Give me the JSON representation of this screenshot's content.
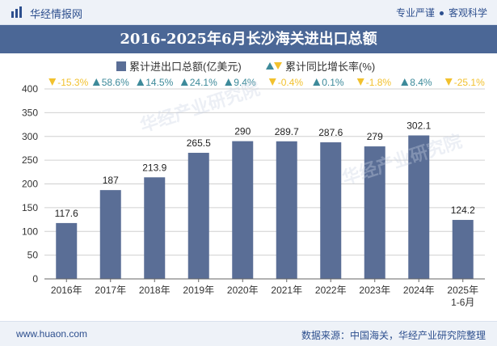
{
  "header": {
    "logo_text": "华经情报网",
    "tagline_left": "专业严谨",
    "tagline_right": "客观科学"
  },
  "colors": {
    "bar": "#5a6e96",
    "up": "#3d8a9a",
    "down": "#f2c12e",
    "title_bg": "#4b6796"
  },
  "watermark": {
    "text": "华经产业研究院",
    "url": "www.huaon.com"
  },
  "chart_data": {
    "type": "bar",
    "title": "2016-2025年6月长沙海关进出口总额",
    "legend": {
      "series1": "累计进出口总额(亿美元)",
      "series2": "累计同比增长率(%)"
    },
    "categories": [
      "2016年",
      "2017年",
      "2018年",
      "2019年",
      "2020年",
      "2021年",
      "2022年",
      "2023年",
      "2024年",
      "2025年"
    ],
    "category_sub": [
      "",
      "",
      "",
      "",
      "",
      "",
      "",
      "",
      "",
      "1-6月"
    ],
    "values": [
      117.6,
      187,
      213.9,
      265.5,
      290,
      289.7,
      287.6,
      279,
      302.1,
      124.2
    ],
    "value_labels": [
      "117.6",
      "187",
      "213.9",
      "265.5",
      "290",
      "289.7",
      "287.6",
      "279",
      "302.1",
      "124.2"
    ],
    "growth": [
      -15.3,
      58.6,
      14.5,
      24.1,
      9.4,
      -0.4,
      0.1,
      -1.8,
      8.4,
      -25.1
    ],
    "growth_labels": [
      "-15.3%",
      "58.6%",
      "14.5%",
      "24.1%",
      "9.4%",
      "-0.4%",
      "0.1%",
      "-1.8%",
      "8.4%",
      "-25.1%"
    ],
    "ylim": [
      0,
      400
    ],
    "yticks": [
      0,
      50,
      100,
      150,
      200,
      250,
      300,
      350,
      400
    ],
    "ytick_labels": [
      "0",
      "50",
      "100",
      "150",
      "200",
      "250",
      "300",
      "350",
      "400"
    ]
  },
  "footer": {
    "site": "www.huaon.com",
    "source": "数据来源：中国海关，华经产业研究院整理"
  }
}
